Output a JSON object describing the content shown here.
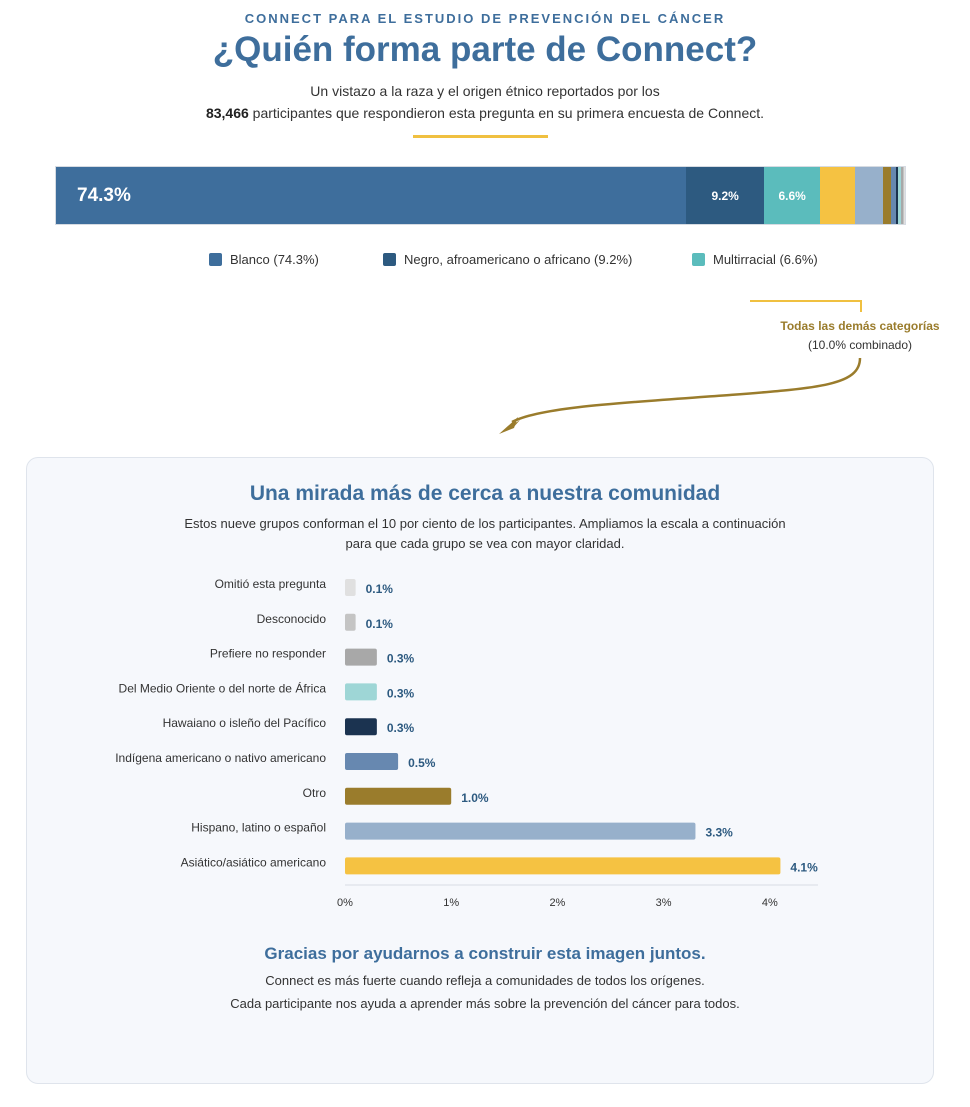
{
  "header": {
    "eyebrow": "CONNECT PARA EL ESTUDIO DE PREVENCIÓN DEL CÁNCER",
    "title": "¿Quién forma parte de Connect?",
    "intro_line1": "Un vistazo a la raza y el origen étnico reportados por los",
    "participants": "83,466",
    "intro_line2_rest": " participantes que respondieron esta pregunta en su primera encuesta de Connect."
  },
  "colors": {
    "blanco": "#3e6e9c",
    "negro": "#2d5a80",
    "multirracial": "#5bbcbc",
    "asiatico": "#f5c242",
    "hispano": "#97b0cb",
    "otro": "#9a7c2c",
    "indigena": "#6788b0",
    "hawaiano": "#1b3350",
    "medio_oriente": "#9ed6d6",
    "prefiere": "#a8a8a8",
    "desconocido": "#c4c4c4",
    "omitio": "#e0e0e0",
    "accent_gold": "#f0c040",
    "callout_text": "#9a7c2c"
  },
  "overview": {
    "segments": [
      {
        "key": "blanco",
        "value": 74.3,
        "label": "74.3%"
      },
      {
        "key": "negro",
        "value": 9.2,
        "label": "9.2%"
      },
      {
        "key": "multirracial",
        "value": 6.6,
        "label": "6.6%"
      },
      {
        "key": "asiatico",
        "value": 4.1,
        "label": ""
      },
      {
        "key": "hispano",
        "value": 3.3,
        "label": ""
      },
      {
        "key": "otro",
        "value": 1.0,
        "label": ""
      },
      {
        "key": "indigena",
        "value": 0.5,
        "label": ""
      },
      {
        "key": "hawaiano",
        "value": 0.3,
        "label": ""
      },
      {
        "key": "medio_oriente",
        "value": 0.3,
        "label": ""
      },
      {
        "key": "prefiere",
        "value": 0.3,
        "label": ""
      },
      {
        "key": "desconocido",
        "value": 0.1,
        "label": ""
      },
      {
        "key": "omitio",
        "value": 0.1,
        "label": ""
      }
    ],
    "legend": [
      {
        "key": "blanco",
        "label": "Blanco (74.3%)"
      },
      {
        "key": "negro",
        "label": "Negro, afroamericano o africano (9.2%)"
      },
      {
        "key": "multirracial",
        "label": "Multirracial (6.6%)"
      }
    ]
  },
  "callout": {
    "title": "Todas las demás categorías",
    "sub": "(10.0% combinado)"
  },
  "panel": {
    "title": "Una mirada más de cerca a nuestra comunidad",
    "sub_line1": "Estos nueve grupos conforman el 10 por ciento de los participantes. Ampliamos la escala a continuación",
    "sub_line2": "para que cada grupo se vea con mayor claridad."
  },
  "chart_data": {
    "type": "bar",
    "orientation": "horizontal",
    "categories": [
      "Omitió esta pregunta",
      "Desconocido",
      "Prefiere no responder",
      "Del Medio Oriente o del norte de África",
      "Hawaiano o isleño del Pacífico",
      "Indígena americano o nativo americano",
      "Otro",
      "Hispano, latino o español",
      "Asiático/asiático americano"
    ],
    "values": [
      0.1,
      0.1,
      0.3,
      0.3,
      0.3,
      0.5,
      1.0,
      3.3,
      4.1
    ],
    "value_labels": [
      "0.1%",
      "0.1%",
      "0.3%",
      "0.3%",
      "0.3%",
      "0.5%",
      "1.0%",
      "3.3%",
      "4.1%"
    ],
    "color_keys": [
      "omitio",
      "desconocido",
      "prefiere",
      "medio_oriente",
      "hawaiano",
      "indigena",
      "otro",
      "hispano",
      "asiatico"
    ],
    "xlim": [
      0,
      4.5
    ],
    "xticks": [
      0,
      1,
      2,
      3,
      4
    ],
    "xtick_labels": [
      "0%",
      "1%",
      "2%",
      "3%",
      "4%"
    ],
    "grid": false
  },
  "thanks": {
    "title": "Gracias por ayudarnos a construir esta imagen juntos.",
    "line1": "Connect es más fuerte cuando refleja a comunidades de todos los orígenes.",
    "line2": "Cada participante nos ayuda a aprender más sobre la prevención del cáncer para todos."
  }
}
